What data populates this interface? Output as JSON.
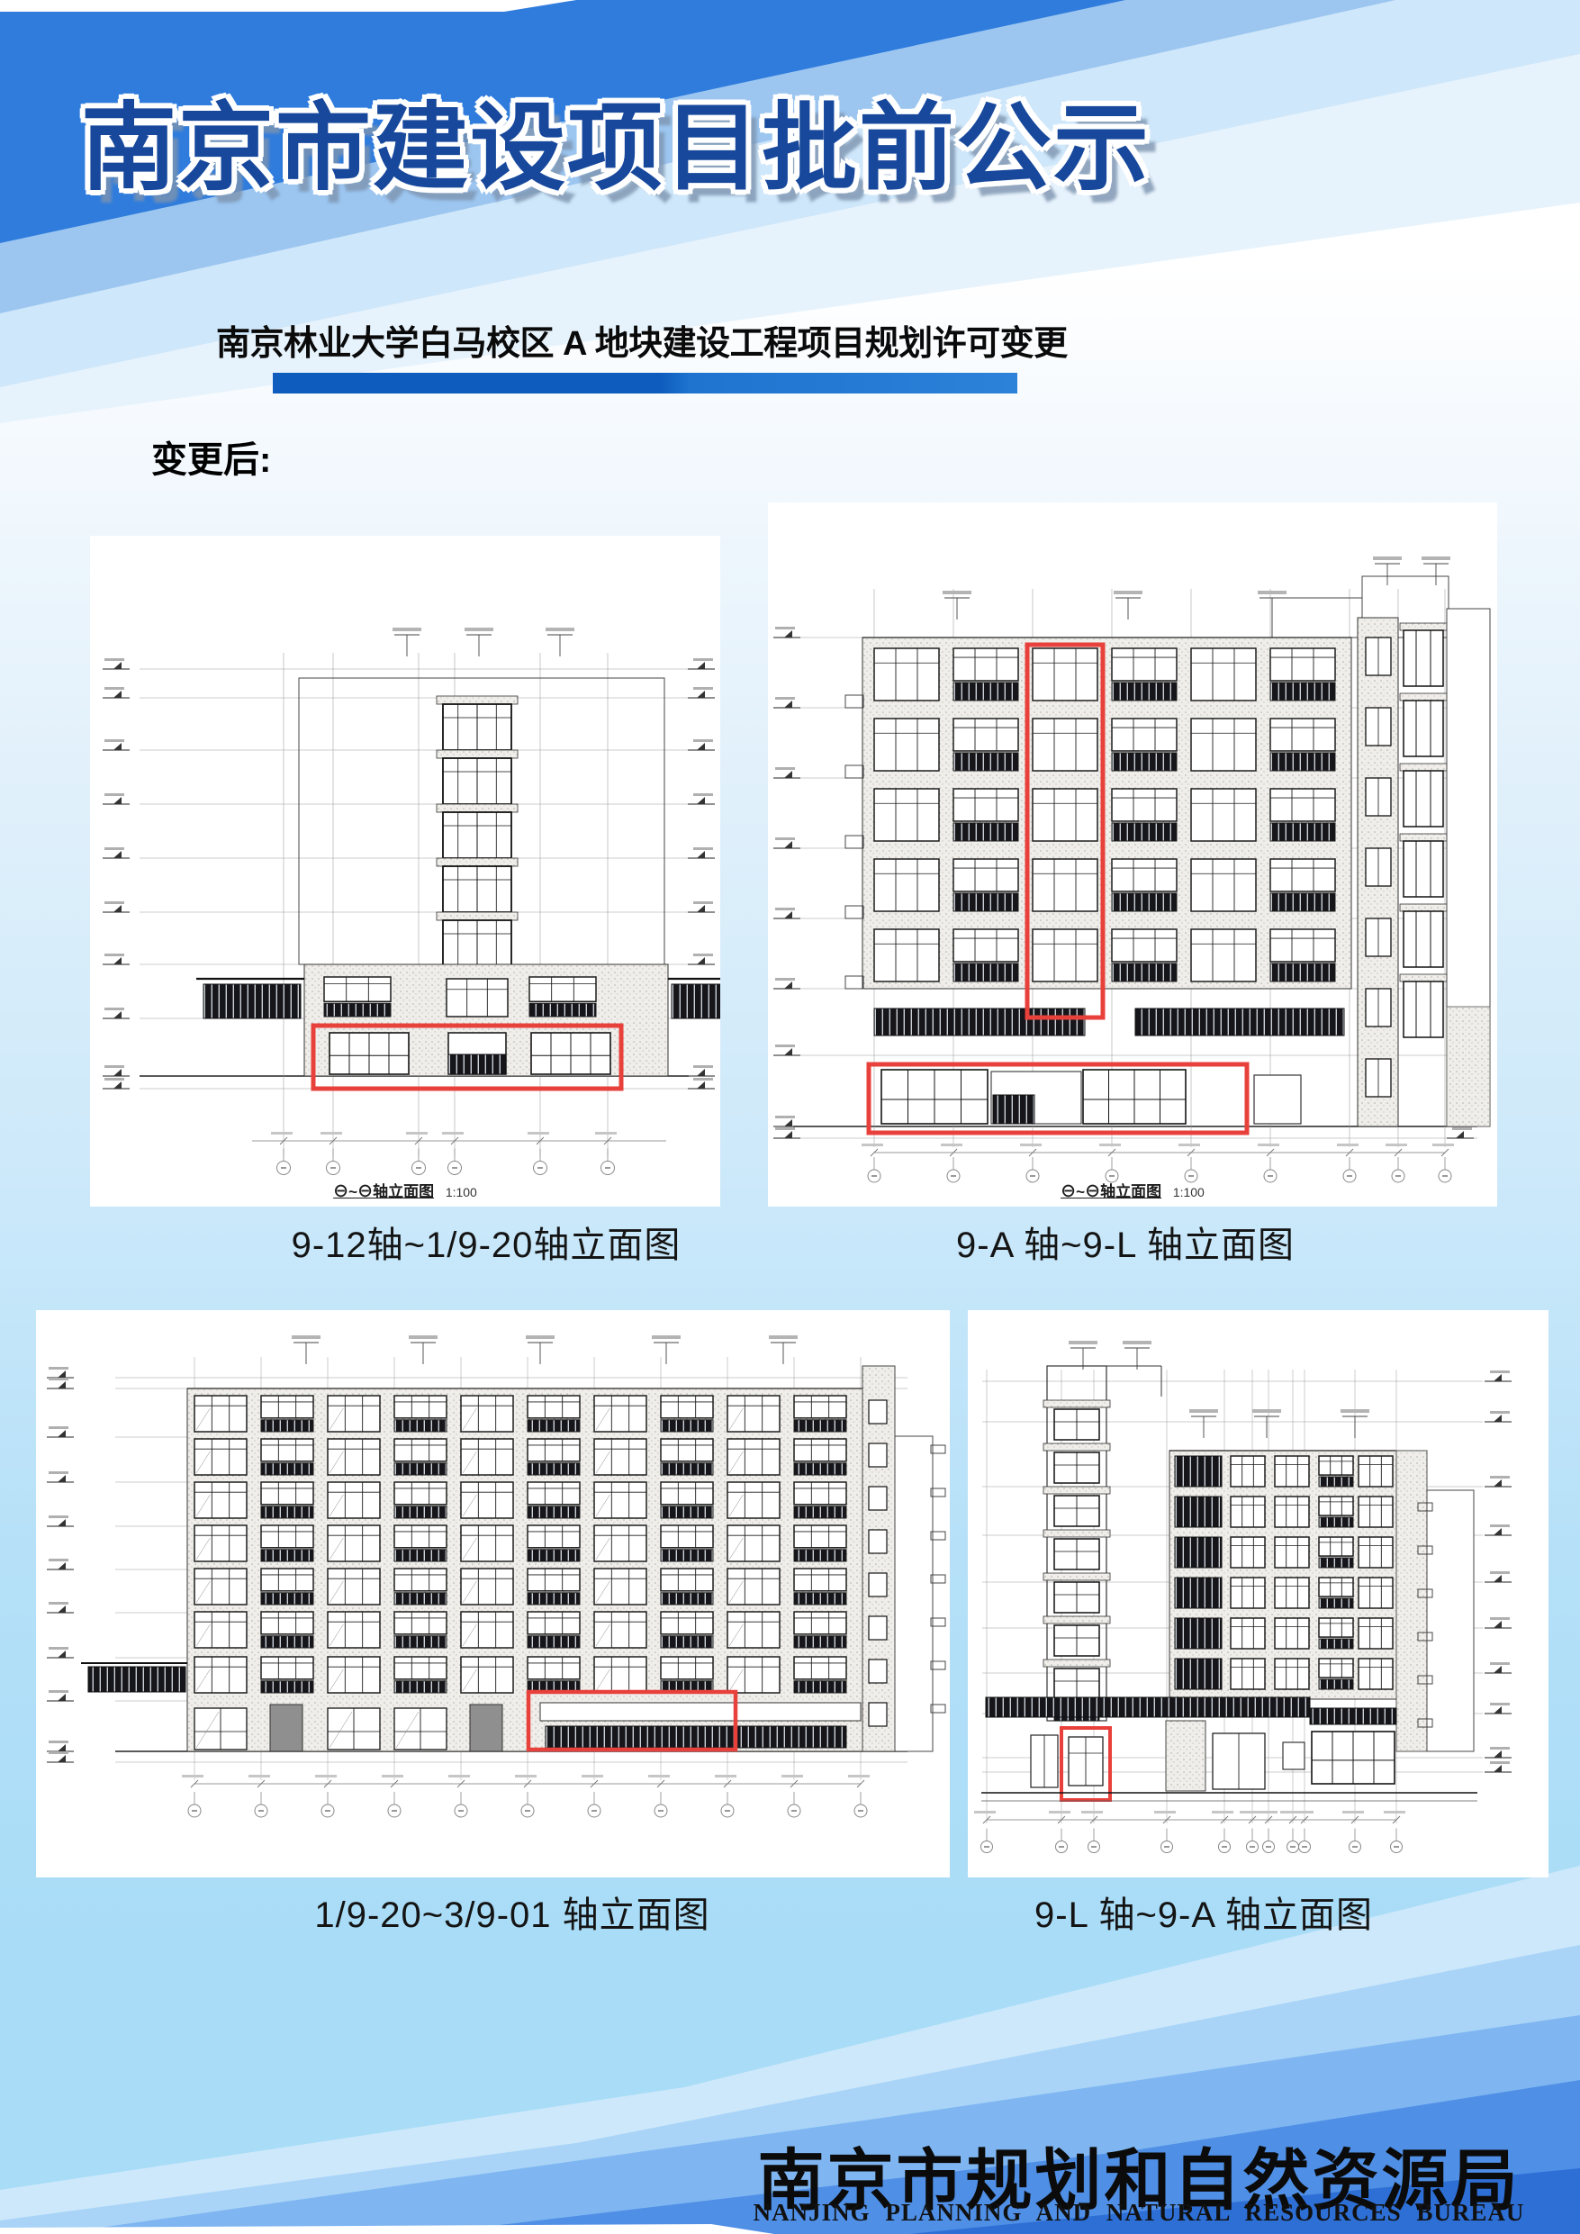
{
  "poster": {
    "title": "南京市建设项目批前公示",
    "subtitle": "南京林业大学白马校区 A 地块建设工程项目规划许可变更",
    "section_label": "变更后:",
    "footer": {
      "org_cn": "南京市规划和自然资源局",
      "org_en": "NANJING PLANNING AND NATURAL RESOURCES BUREAU"
    }
  },
  "drawings": [
    {
      "caption": "9-12轴~1/9-20轴立面图",
      "inner_axis": "⊖~⊖轴立面图",
      "inner_scale": "1:100"
    },
    {
      "caption": "9-A 轴~9-L 轴立面图",
      "inner_axis": "⊖~⊖轴立面图",
      "inner_scale": "1:100"
    },
    {
      "caption": "1/9-20~3/9-01 轴立面图"
    },
    {
      "caption": "9-L 轴~9-A 轴立面图"
    }
  ],
  "colors": {
    "header_blue": "#2F7CDD",
    "band_mid": "#9CC6F0",
    "band_light": "#CFE7FA",
    "title_navy": "#17489C",
    "underline_blue": "#0E5CBE",
    "highlight_red": "#E8413C",
    "footer_deep_blue": "#2E6FD6"
  }
}
